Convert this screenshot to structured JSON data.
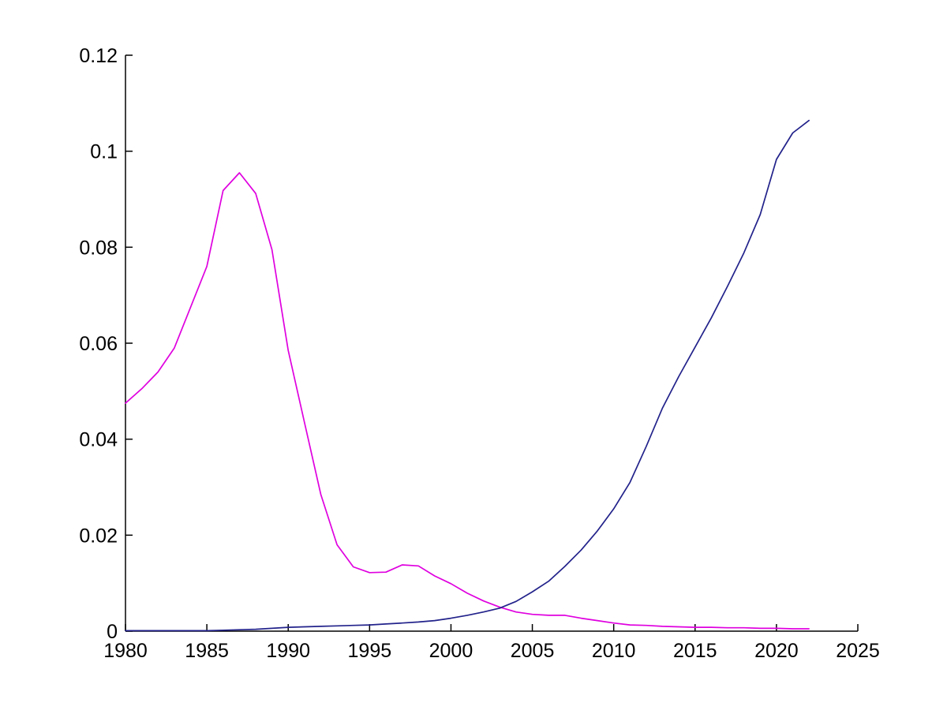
{
  "figure": {
    "background": "#FFFFFF",
    "axis_color": "#000000"
  },
  "chart_data": {
    "type": "line",
    "title": "",
    "xlabel": "",
    "ylabel": "",
    "grid": false,
    "legend_position": "none",
    "box": "off",
    "xlim": [
      1980,
      2025
    ],
    "ylim": [
      0,
      0.12
    ],
    "xticks": [
      1980,
      1985,
      1990,
      1995,
      2000,
      2005,
      2010,
      2015,
      2020,
      2025
    ],
    "xtick_labels": [
      "1980",
      "1985",
      "1990",
      "1995",
      "2000",
      "2005",
      "2010",
      "2015",
      "2020",
      "2025"
    ],
    "yticks": [
      0,
      0.02,
      0.04,
      0.06,
      0.08,
      0.1,
      0.12
    ],
    "ytick_labels": [
      "0",
      "0.02",
      "0.04",
      "0.06",
      "0.08",
      "0.1",
      "0.12"
    ],
    "x": [
      1980,
      1981,
      1982,
      1983,
      1984,
      1985,
      1986,
      1987,
      1988,
      1989,
      1990,
      1991,
      1992,
      1993,
      1994,
      1995,
      1996,
      1997,
      1998,
      1999,
      2000,
      2001,
      2002,
      2003,
      2004,
      2005,
      2006,
      2007,
      2008,
      2009,
      2010,
      2011,
      2012,
      2013,
      2014,
      2015,
      2016,
      2017,
      2018,
      2019,
      2020,
      2021,
      2022
    ],
    "series": [
      {
        "id": "magenta-line",
        "color": "#DF00DF",
        "values": [
          0.0475,
          0.0505,
          0.054,
          0.059,
          0.0675,
          0.076,
          0.0918,
          0.0955,
          0.0912,
          0.0795,
          0.0585,
          0.0435,
          0.0285,
          0.018,
          0.0134,
          0.0122,
          0.0123,
          0.0138,
          0.0136,
          0.0115,
          0.0099,
          0.0079,
          0.0063,
          0.005,
          0.004,
          0.0035,
          0.0033,
          0.0033,
          0.0027,
          0.0022,
          0.0017,
          0.0013,
          0.0012,
          0.001,
          0.0009,
          0.0008,
          0.0008,
          0.0007,
          0.0007,
          0.0006,
          0.0006,
          0.0005,
          0.0005
        ]
      },
      {
        "id": "dark-blue-line",
        "color": "#22228B",
        "values": [
          0.0001,
          0.0001,
          0.0001,
          0.0001,
          0.0001,
          0.0001,
          0.0002,
          0.0003,
          0.0004,
          0.0006,
          0.0008,
          0.0009,
          0.001,
          0.0011,
          0.0012,
          0.0013,
          0.0015,
          0.0017,
          0.0019,
          0.0022,
          0.0027,
          0.0033,
          0.004,
          0.0048,
          0.0062,
          0.0082,
          0.0104,
          0.0135,
          0.0169,
          0.0209,
          0.0255,
          0.031,
          0.0385,
          0.0465,
          0.0531,
          0.0592,
          0.0653,
          0.0719,
          0.0788,
          0.0868,
          0.0983,
          0.1038,
          0.1064
        ]
      }
    ]
  }
}
